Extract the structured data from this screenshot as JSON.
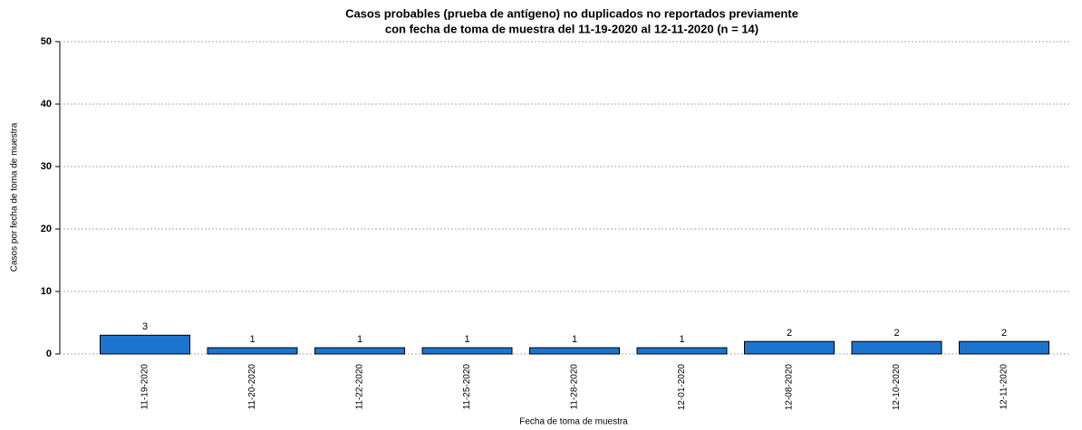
{
  "chart_data": {
    "type": "bar",
    "title": [
      "Casos probables (prueba de antígeno) no duplicados no reportados previamente",
      "con fecha de toma de muestra del 11-19-2020 al 12-11-2020 (n = 14)"
    ],
    "x_label": "Fecha de toma de muestra",
    "y_label": "Casos por fecha de toma de muestra",
    "categories": [
      "11-19-2020",
      "11-20-2020",
      "11-22-2020",
      "11-25-2020",
      "11-28-2020",
      "12-01-2020",
      "12-08-2020",
      "12-10-2020",
      "12-11-2020"
    ],
    "values": [
      3,
      1,
      1,
      1,
      1,
      1,
      2,
      2,
      2
    ],
    "color": "#1c74cf",
    "ylim": [
      0,
      50
    ],
    "yticks": [
      0,
      10,
      20,
      30,
      40,
      50
    ],
    "grid": true
  }
}
